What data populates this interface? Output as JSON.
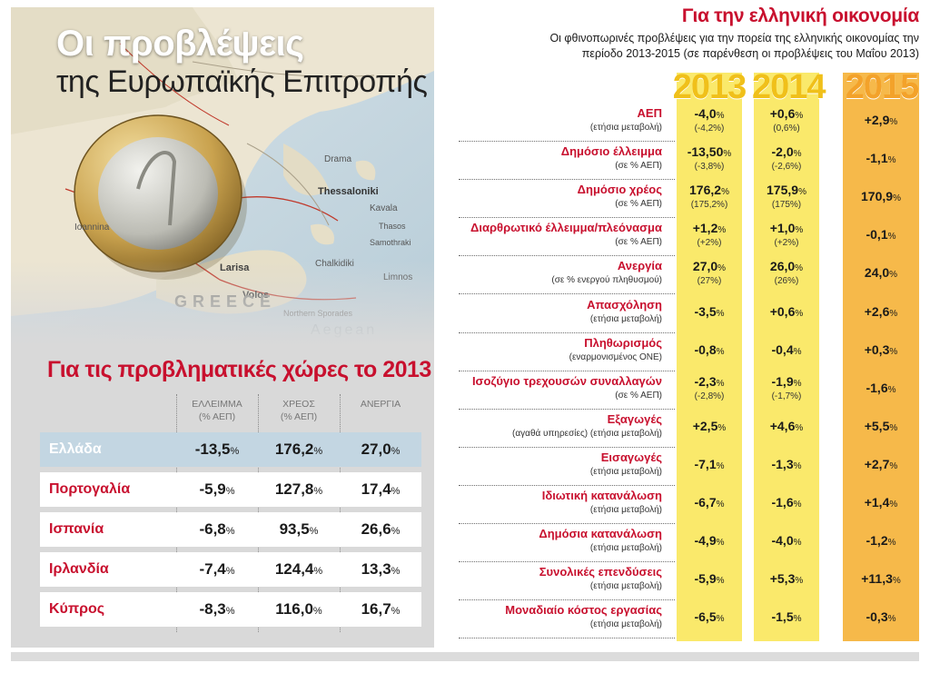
{
  "left": {
    "title_line1": "Οι προβλέψεις",
    "title_line2": "της Ευρωπαϊκής Επιτροπής",
    "map_labels": [
      "Ioannina",
      "Larisa",
      "Volos",
      "Drama",
      "Kavala",
      "Thasos",
      "Thessaloniki",
      "Samothraki",
      "Chalkidiki",
      "Limnos",
      "Northern Sporades",
      "GREECE",
      "Aegean"
    ]
  },
  "problem_countries": {
    "heading": "Για τις προβληματικές χώρες το 2013",
    "col_deficit_line1": "ΕΛΛΕΙΜΜΑ",
    "col_deficit_line2": "(% ΑΕΠ)",
    "col_debt_line1": "ΧΡΕΟΣ",
    "col_debt_line2": "(% ΑΕΠ)",
    "col_unemployment": "ΑΝΕΡΓΙΑ",
    "unit": "%",
    "rows": [
      {
        "country": "Ελλάδα",
        "deficit": "-13,5",
        "debt": "176,2",
        "unemployment": "27,0"
      },
      {
        "country": "Πορτογαλία",
        "deficit": "-5,9",
        "debt": "127,8",
        "unemployment": "17,4"
      },
      {
        "country": "Ισπανία",
        "deficit": "-6,8",
        "debt": "93,5",
        "unemployment": "26,6"
      },
      {
        "country": "Ιρλανδία",
        "deficit": "-7,4",
        "debt": "124,4",
        "unemployment": "13,3"
      },
      {
        "country": "Κύπρος",
        "deficit": "-8,3",
        "debt": "116,0",
        "unemployment": "16,7"
      }
    ]
  },
  "greek_economy": {
    "title": "Για την ελληνική οικονομία",
    "subtitle_line1": "Οι φθινοπωρινές προβλέψεις για την πορεία της ελληνικής οικονομίας την",
    "subtitle_line2": "περίοδο 2013-2015 (σε παρένθεση οι προβλέψεις του Μαΐου 2013)",
    "years": [
      "2013",
      "2014",
      "2015"
    ],
    "unit": "%",
    "rows": [
      {
        "label": "ΑΕΠ",
        "sub": "(ετήσια μεταβολή)",
        "y2013": "-4,0",
        "y2013_prev": "(-4,2%)",
        "y2014": "+0,6",
        "y2014_prev": "(0,6%)",
        "y2015": "+2,9"
      },
      {
        "label": "Δημόσιο έλλειμμα",
        "sub": "(σε % ΑΕΠ)",
        "y2013": "-13,50",
        "y2013_prev": "(-3,8%)",
        "y2014": "-2,0",
        "y2014_prev": "(-2,6%)",
        "y2015": "-1,1"
      },
      {
        "label": "Δημόσιο χρέος",
        "sub": "(σε % ΑΕΠ)",
        "y2013": "176,2",
        "y2013_prev": "(175,2%)",
        "y2014": "175,9",
        "y2014_prev": "(175%)",
        "y2015": "170,9"
      },
      {
        "label": "Διαρθρωτικό έλλειμμα/πλεόνασμα",
        "sub": "(σε % ΑΕΠ)",
        "y2013": "+1,2",
        "y2013_prev": "(+2%)",
        "y2014": "+1,0",
        "y2014_prev": "(+2%)",
        "y2015": "-0,1"
      },
      {
        "label": "Ανεργία",
        "sub": "(σε % ενεργού πληθυσμού)",
        "y2013": "27,0",
        "y2013_prev": "(27%)",
        "y2014": "26,0",
        "y2014_prev": "(26%)",
        "y2015": "24,0"
      },
      {
        "label": "Απασχόληση",
        "sub": "(ετήσια μεταβολή)",
        "y2013": "-3,5",
        "y2013_prev": "",
        "y2014": "+0,6",
        "y2014_prev": "",
        "y2015": "+2,6"
      },
      {
        "label": "Πληθωρισμός",
        "sub": "(εναρμονισμένος ΟΝΕ)",
        "y2013": "-0,8",
        "y2013_prev": "",
        "y2014": "-0,4",
        "y2014_prev": "",
        "y2015": "+0,3"
      },
      {
        "label": "Ισοζύγιο τρεχουσών συναλλαγών",
        "sub": "(σε % ΑΕΠ)",
        "y2013": "-2,3",
        "y2013_prev": "(-2,8%)",
        "y2014": "-1,9",
        "y2014_prev": "(-1,7%)",
        "y2015": "-1,6"
      },
      {
        "label": "Εξαγωγές",
        "sub": "(αγαθά υπηρεσίες) (ετήσια μεταβολή)",
        "y2013": "+2,5",
        "y2013_prev": "",
        "y2014": "+4,6",
        "y2014_prev": "",
        "y2015": "+5,5"
      },
      {
        "label": "Εισαγωγές",
        "sub": "(ετήσια μεταβολή)",
        "y2013": "-7,1",
        "y2013_prev": "",
        "y2014": "-1,3",
        "y2014_prev": "",
        "y2015": "+2,7"
      },
      {
        "label": "Ιδιωτική κατανάλωση",
        "sub": "(ετήσια μεταβολή)",
        "y2013": "-6,7",
        "y2013_prev": "",
        "y2014": "-1,6",
        "y2014_prev": "",
        "y2015": "+1,4"
      },
      {
        "label": "Δημόσια κατανάλωση",
        "sub": "(ετήσια μεταβολή)",
        "y2013": "-4,9",
        "y2013_prev": "",
        "y2014": "-4,0",
        "y2014_prev": "",
        "y2015": "-1,2"
      },
      {
        "label": "Συνολικές επενδύσεις",
        "sub": "(ετήσια μεταβολή)",
        "y2013": "-5,9",
        "y2013_prev": "",
        "y2014": "+5,3",
        "y2014_prev": "",
        "y2015": "+11,3"
      },
      {
        "label": "Μοναδιαίο κόστος εργασίας",
        "sub": "(ετήσια μεταβολή)",
        "y2013": "-6,5",
        "y2013_prev": "",
        "y2014": "-1,5",
        "y2014_prev": "",
        "y2015": "-0,3"
      }
    ]
  }
}
